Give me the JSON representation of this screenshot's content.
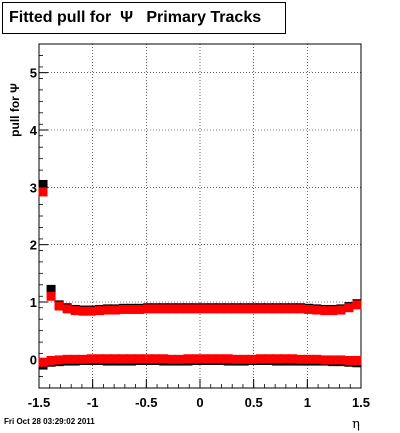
{
  "title": "Fitted pull for  Ψ   Primary Tracks",
  "footer_date": "Fri Oct 28 03:29:02 2011",
  "chart_data": {
    "type": "scatter",
    "title": "Fitted pull for  Ψ   Primary Tracks",
    "xlabel": "η",
    "ylabel": "pull for Ψ",
    "xlim": [
      -1.5,
      1.5
    ],
    "ylim": [
      -0.5,
      5.5
    ],
    "xticks": [
      -1.5,
      -1,
      -0.5,
      0,
      0.5,
      1,
      1.5
    ],
    "xtick_labels": [
      "-1.5",
      "-1",
      "-0.5",
      "0",
      "0.5",
      "1",
      "1.5"
    ],
    "yticks": [
      0,
      1,
      2,
      3,
      4,
      5
    ],
    "ytick_labels": [
      "0",
      "1",
      "2",
      "3",
      "4",
      "5"
    ],
    "grid": true,
    "colors": {
      "series_black": "#000000",
      "series_red": "#ff0000"
    },
    "series": [
      {
        "color": "black",
        "x": [
          -1.4625,
          -1.3875,
          -1.3125,
          -1.2375,
          -1.1625,
          -1.0875,
          -1.0125,
          -0.9375,
          -0.8625,
          -0.7875,
          -0.7125,
          -0.6375,
          -0.5625,
          -0.4875,
          -0.4125,
          -0.3375,
          -0.2625,
          -0.1875,
          -0.1125,
          -0.0375,
          0.0375,
          0.1125,
          0.1875,
          0.2625,
          0.3375,
          0.4125,
          0.4875,
          0.5625,
          0.6375,
          0.7125,
          0.7875,
          0.8625,
          0.9375,
          1.0125,
          1.0875,
          1.1625,
          1.2375,
          1.3125,
          1.3875,
          1.4625
        ],
        "sigma": [
          3.05,
          1.22,
          0.95,
          0.9,
          0.87,
          0.86,
          0.86,
          0.87,
          0.88,
          0.88,
          0.89,
          0.89,
          0.89,
          0.9,
          0.9,
          0.9,
          0.9,
          0.9,
          0.9,
          0.9,
          0.9,
          0.9,
          0.9,
          0.9,
          0.9,
          0.9,
          0.9,
          0.9,
          0.9,
          0.9,
          0.9,
          0.9,
          0.9,
          0.89,
          0.88,
          0.87,
          0.87,
          0.88,
          0.92,
          0.97
        ],
        "mean": [
          -0.1,
          -0.05,
          -0.04,
          -0.03,
          -0.03,
          -0.02,
          -0.02,
          -0.02,
          -0.03,
          -0.03,
          -0.03,
          -0.03,
          -0.02,
          -0.02,
          -0.02,
          -0.03,
          -0.03,
          -0.03,
          -0.03,
          -0.02,
          -0.02,
          -0.02,
          -0.02,
          -0.03,
          -0.03,
          -0.03,
          -0.02,
          -0.02,
          -0.02,
          -0.03,
          -0.03,
          -0.03,
          -0.03,
          -0.03,
          -0.03,
          -0.03,
          -0.04,
          -0.04,
          -0.05,
          -0.06
        ]
      },
      {
        "color": "red",
        "x": [
          -1.4625,
          -1.3875,
          -1.3125,
          -1.2375,
          -1.1625,
          -1.0875,
          -1.0125,
          -0.9375,
          -0.8625,
          -0.7875,
          -0.7125,
          -0.6375,
          -0.5625,
          -0.4875,
          -0.4125,
          -0.3375,
          -0.2625,
          -0.1875,
          -0.1125,
          -0.0375,
          0.0375,
          0.1125,
          0.1875,
          0.2625,
          0.3375,
          0.4125,
          0.4875,
          0.5625,
          0.6375,
          0.7125,
          0.7875,
          0.8625,
          0.9375,
          1.0125,
          1.0875,
          1.1625,
          1.2375,
          1.3125,
          1.3875,
          1.4625
        ],
        "sigma": [
          2.92,
          1.1,
          0.93,
          0.88,
          0.85,
          0.84,
          0.84,
          0.85,
          0.86,
          0.86,
          0.87,
          0.87,
          0.87,
          0.88,
          0.88,
          0.88,
          0.88,
          0.88,
          0.88,
          0.88,
          0.88,
          0.88,
          0.88,
          0.88,
          0.88,
          0.88,
          0.88,
          0.88,
          0.88,
          0.88,
          0.88,
          0.88,
          0.88,
          0.87,
          0.86,
          0.85,
          0.85,
          0.86,
          0.9,
          0.95
        ],
        "mean": [
          -0.05,
          -0.02,
          -0.01,
          0.0,
          0.0,
          0.0,
          0.01,
          0.01,
          0.01,
          0.01,
          0.01,
          0.01,
          0.01,
          0.01,
          0.01,
          0.01,
          0.0,
          0.0,
          0.01,
          0.01,
          0.01,
          0.01,
          0.01,
          0.01,
          0.0,
          0.0,
          0.0,
          0.01,
          0.01,
          0.01,
          0.01,
          0.01,
          0.0,
          0.0,
          0.0,
          -0.01,
          -0.01,
          -0.01,
          -0.02,
          -0.02
        ]
      }
    ]
  }
}
